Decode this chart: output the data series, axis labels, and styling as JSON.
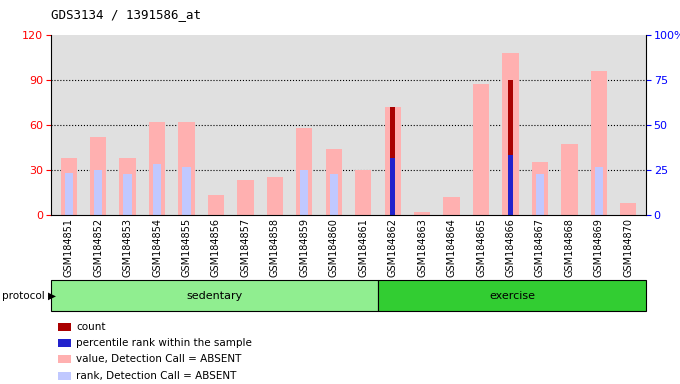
{
  "title": "GDS3134 / 1391586_at",
  "samples": [
    "GSM184851",
    "GSM184852",
    "GSM184853",
    "GSM184854",
    "GSM184855",
    "GSM184856",
    "GSM184857",
    "GSM184858",
    "GSM184859",
    "GSM184860",
    "GSM184861",
    "GSM184862",
    "GSM184863",
    "GSM184864",
    "GSM184865",
    "GSM184866",
    "GSM184867",
    "GSM184868",
    "GSM184869",
    "GSM184870"
  ],
  "value_absent": [
    38,
    52,
    38,
    62,
    62,
    13,
    23,
    25,
    58,
    44,
    30,
    72,
    2,
    12,
    87,
    108,
    35,
    47,
    96,
    8
  ],
  "rank_absent": [
    28,
    30,
    27,
    34,
    32,
    0,
    0,
    0,
    30,
    27,
    0,
    0,
    0,
    0,
    0,
    0,
    27,
    0,
    32,
    0
  ],
  "count_red": [
    0,
    0,
    0,
    0,
    0,
    0,
    0,
    0,
    0,
    0,
    0,
    72,
    0,
    0,
    0,
    90,
    0,
    0,
    0,
    0
  ],
  "percentile_blue": [
    0,
    0,
    0,
    0,
    0,
    0,
    0,
    0,
    0,
    0,
    0,
    38,
    0,
    0,
    0,
    40,
    0,
    0,
    0,
    0
  ],
  "ylim_left": [
    0,
    120
  ],
  "yticks_left": [
    0,
    30,
    60,
    90,
    120
  ],
  "ylim_right": [
    0,
    100
  ],
  "yticks_right": [
    0,
    25,
    50,
    75,
    100
  ],
  "color_value_absent": "#ffb0b0",
  "color_rank_absent": "#c0c8ff",
  "color_count": "#aa0000",
  "color_percentile": "#2222cc",
  "bg_plot": "#e0e0e0",
  "sed_color": "#90ee90",
  "exe_color": "#32cd32",
  "gridline_color": "#000000",
  "sed_count": 11,
  "exe_count": 9,
  "bar_width": 0.55,
  "rank_bar_width": 0.28,
  "count_bar_width": 0.18,
  "legend_items": [
    {
      "color": "#aa0000",
      "label": "count"
    },
    {
      "color": "#2222cc",
      "label": "percentile rank within the sample"
    },
    {
      "color": "#ffb0b0",
      "label": "value, Detection Call = ABSENT"
    },
    {
      "color": "#c0c8ff",
      "label": "rank, Detection Call = ABSENT"
    }
  ]
}
